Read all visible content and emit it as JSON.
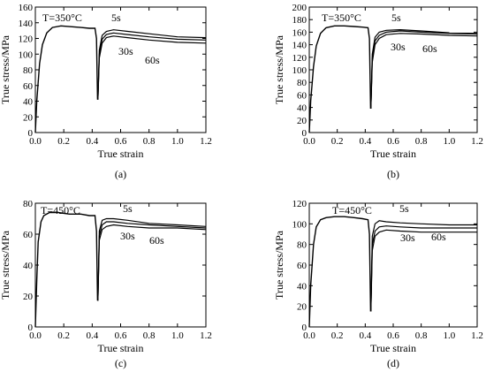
{
  "chart_data": [
    {
      "type": "line",
      "panel_label": "(a)",
      "annotation": "T=350°C",
      "xlabel": "True strain",
      "ylabel": "True stress/MPa",
      "xlim": [
        0.0,
        1.2
      ],
      "ylim": [
        0,
        160
      ],
      "xticks": [
        0.0,
        0.2,
        0.4,
        0.6,
        0.8,
        1.0,
        1.2
      ],
      "yticks": [
        0,
        20,
        40,
        60,
        80,
        100,
        120,
        140,
        160
      ],
      "first_pass": {
        "x": [
          0.0,
          0.01,
          0.03,
          0.05,
          0.08,
          0.12,
          0.18,
          0.25,
          0.32,
          0.38,
          0.42,
          0.43,
          0.438
        ],
        "y": [
          0,
          40,
          88,
          112,
          127,
          134,
          136,
          135,
          134,
          133,
          133,
          120,
          42
        ]
      },
      "series": [
        {
          "name": "5s",
          "x": [
            0.44,
            0.45,
            0.47,
            0.5,
            0.55,
            0.65,
            0.8,
            1.0,
            1.2
          ],
          "y": [
            42,
            105,
            124,
            129,
            131,
            129,
            126,
            122,
            121
          ]
        },
        {
          "name": "30s",
          "x": [
            0.44,
            0.45,
            0.47,
            0.5,
            0.55,
            0.65,
            0.8,
            1.0,
            1.2
          ],
          "y": [
            42,
            100,
            119,
            125,
            127,
            125,
            122,
            119,
            118
          ]
        },
        {
          "name": "60s",
          "x": [
            0.44,
            0.45,
            0.47,
            0.5,
            0.55,
            0.65,
            0.8,
            1.0,
            1.2
          ],
          "y": [
            42,
            95,
            114,
            121,
            123,
            121,
            118,
            115,
            114
          ]
        }
      ]
    },
    {
      "type": "line",
      "panel_label": "(b)",
      "annotation": "T=350°C",
      "xlabel": "True strain",
      "ylabel": "True stress/MPa",
      "xlim": [
        0.0,
        1.2
      ],
      "ylim": [
        0,
        200
      ],
      "xticks": [
        0.0,
        0.2,
        0.4,
        0.6,
        0.8,
        1.0,
        1.2
      ],
      "yticks": [
        0,
        20,
        40,
        60,
        80,
        100,
        120,
        140,
        160,
        180,
        200
      ],
      "first_pass": {
        "x": [
          0.0,
          0.01,
          0.03,
          0.05,
          0.08,
          0.12,
          0.18,
          0.25,
          0.32,
          0.38,
          0.42,
          0.43,
          0.438
        ],
        "y": [
          0,
          50,
          105,
          138,
          158,
          167,
          170,
          170,
          169,
          168,
          167,
          150,
          38
        ]
      },
      "series": [
        {
          "name": "5s",
          "x": [
            0.44,
            0.45,
            0.47,
            0.5,
            0.55,
            0.65,
            0.8,
            1.0,
            1.2
          ],
          "y": [
            38,
            125,
            152,
            160,
            163,
            164,
            162,
            159,
            158
          ]
        },
        {
          "name": "30s",
          "x": [
            0.44,
            0.45,
            0.47,
            0.5,
            0.55,
            0.65,
            0.8,
            1.0,
            1.2
          ],
          "y": [
            38,
            118,
            146,
            155,
            160,
            162,
            160,
            158,
            157
          ]
        },
        {
          "name": "60s",
          "x": [
            0.44,
            0.45,
            0.47,
            0.5,
            0.55,
            0.65,
            0.8,
            1.0,
            1.2
          ],
          "y": [
            38,
            112,
            140,
            150,
            156,
            158,
            157,
            155,
            154
          ]
        }
      ]
    },
    {
      "type": "line",
      "panel_label": "(c)",
      "annotation": "T=450°C",
      "xlabel": "True strain",
      "ylabel": "True stress/MPa",
      "xlim": [
        0.0,
        1.2
      ],
      "ylim": [
        0,
        80
      ],
      "xticks": [
        0.0,
        0.2,
        0.4,
        0.6,
        0.8,
        1.0,
        1.2
      ],
      "yticks": [
        0,
        20,
        40,
        60,
        80
      ],
      "first_pass": {
        "x": [
          0.0,
          0.01,
          0.02,
          0.04,
          0.06,
          0.1,
          0.16,
          0.24,
          0.32,
          0.38,
          0.42,
          0.43,
          0.438
        ],
        "y": [
          0,
          30,
          55,
          68,
          72,
          74,
          74,
          73,
          73,
          72,
          72,
          62,
          17
        ]
      },
      "series": [
        {
          "name": "5s",
          "x": [
            0.44,
            0.45,
            0.47,
            0.5,
            0.55,
            0.65,
            0.8,
            1.0,
            1.2
          ],
          "y": [
            17,
            62,
            69,
            70,
            70,
            69,
            67,
            66,
            65
          ]
        },
        {
          "name": "30s",
          "x": [
            0.44,
            0.45,
            0.47,
            0.5,
            0.55,
            0.65,
            0.8,
            1.0,
            1.2
          ],
          "y": [
            17,
            59,
            66,
            68,
            68,
            67,
            66,
            65,
            64
          ]
        },
        {
          "name": "60s",
          "x": [
            0.44,
            0.45,
            0.47,
            0.5,
            0.55,
            0.65,
            0.8,
            1.0,
            1.2
          ],
          "y": [
            17,
            56,
            63,
            65,
            66,
            65,
            64,
            64,
            63
          ]
        }
      ]
    },
    {
      "type": "line",
      "panel_label": "(d)",
      "annotation": "T=450°C",
      "xlabel": "True strain",
      "ylabel": "True stress/MPa",
      "xlim": [
        0.0,
        1.2
      ],
      "ylim": [
        0,
        120
      ],
      "xticks": [
        0.0,
        0.2,
        0.4,
        0.6,
        0.8,
        1.0,
        1.2
      ],
      "yticks": [
        0,
        20,
        40,
        60,
        80,
        100,
        120
      ],
      "first_pass": {
        "x": [
          0.0,
          0.01,
          0.03,
          0.05,
          0.08,
          0.12,
          0.18,
          0.25,
          0.32,
          0.38,
          0.42,
          0.43,
          0.438
        ],
        "y": [
          0,
          40,
          80,
          97,
          104,
          106,
          107,
          107,
          106,
          105,
          104,
          90,
          15
        ]
      },
      "series": [
        {
          "name": "5s",
          "x": [
            0.44,
            0.45,
            0.47,
            0.5,
            0.55,
            0.65,
            0.8,
            1.0,
            1.2
          ],
          "y": [
            15,
            88,
            100,
            103,
            102,
            101,
            100,
            99,
            99
          ]
        },
        {
          "name": "30s",
          "x": [
            0.44,
            0.45,
            0.47,
            0.5,
            0.55,
            0.65,
            0.8,
            1.0,
            1.2
          ],
          "y": [
            15,
            80,
            93,
            97,
            98,
            97,
            96,
            96,
            96
          ]
        },
        {
          "name": "60s",
          "x": [
            0.44,
            0.45,
            0.47,
            0.5,
            0.55,
            0.65,
            0.8,
            1.0,
            1.2
          ],
          "y": [
            15,
            74,
            88,
            92,
            94,
            93,
            92,
            92,
            92
          ]
        }
      ]
    }
  ]
}
